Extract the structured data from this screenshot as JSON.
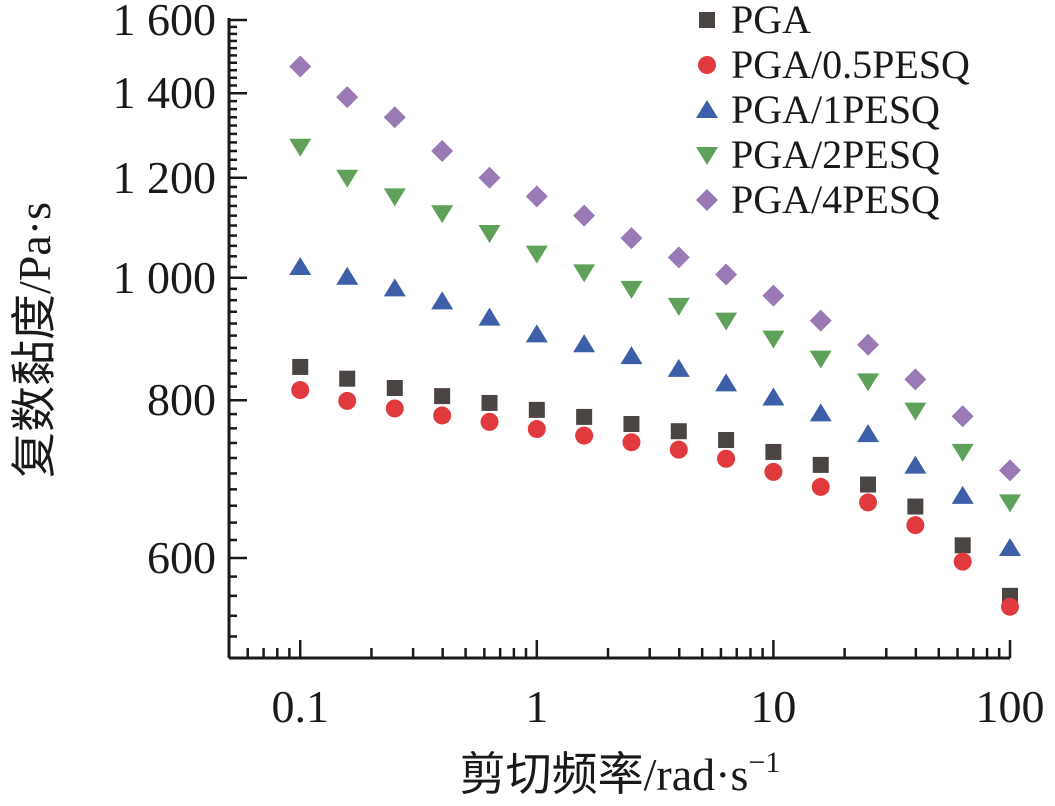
{
  "chart_data": {
    "type": "scatter",
    "xscale": "log",
    "yscale": "log",
    "xlim": [
      0.05,
      100
    ],
    "ylim": [
      500,
      1600
    ],
    "xlabel": "剪切频率/rad·s",
    "xlabel_sup": "−1",
    "ylabel": "复数黏度/Pa·s",
    "x_tick_labels": [
      "0.1",
      "1",
      "10",
      "100"
    ],
    "y_tick_labels": [
      "600",
      "800",
      "1 000",
      "1 200",
      "1 400",
      "1 600"
    ],
    "legend_position": "top-right",
    "x": [
      0.1,
      0.158,
      0.251,
      0.398,
      0.631,
      1,
      1.585,
      2.512,
      3.981,
      6.31,
      10,
      15.85,
      25.12,
      39.81,
      63.1,
      100
    ],
    "series": [
      {
        "name": "PGA",
        "marker": "square",
        "color": "#4a4443",
        "values": [
          850,
          832,
          818,
          806,
          796,
          786,
          776,
          766,
          756,
          744,
          728,
          711,
          686,
          659,
          614,
          560
        ]
      },
      {
        "name": "PGA/0.5PESQ",
        "marker": "circle",
        "color": "#e0393e",
        "values": [
          815,
          799,
          788,
          778,
          769,
          759,
          750,
          741,
          731,
          719,
          702,
          683,
          664,
          637,
          596,
          549
        ]
      },
      {
        "name": "PGA/1PESQ",
        "marker": "triangle-up",
        "color": "#3d5fa8",
        "values": [
          1020,
          1002,
          981,
          958,
          930,
          902,
          886,
          867,
          847,
          825,
          804,
          781,
          752,
          710,
          672,
          611
        ]
      },
      {
        "name": "PGA/2PESQ",
        "marker": "triangle-down",
        "color": "#5fa15a",
        "values": [
          1270,
          1200,
          1160,
          1125,
          1085,
          1045,
          1010,
          980,
          950,
          925,
          895,
          863,
          828,
          785,
          728,
          664
        ]
      },
      {
        "name": "PGA/4PESQ",
        "marker": "diamond",
        "color": "#9a7ab5",
        "values": [
          1470,
          1390,
          1340,
          1260,
          1200,
          1160,
          1120,
          1075,
          1038,
          1006,
          968,
          925,
          885,
          831,
          777,
          704
        ]
      }
    ]
  }
}
